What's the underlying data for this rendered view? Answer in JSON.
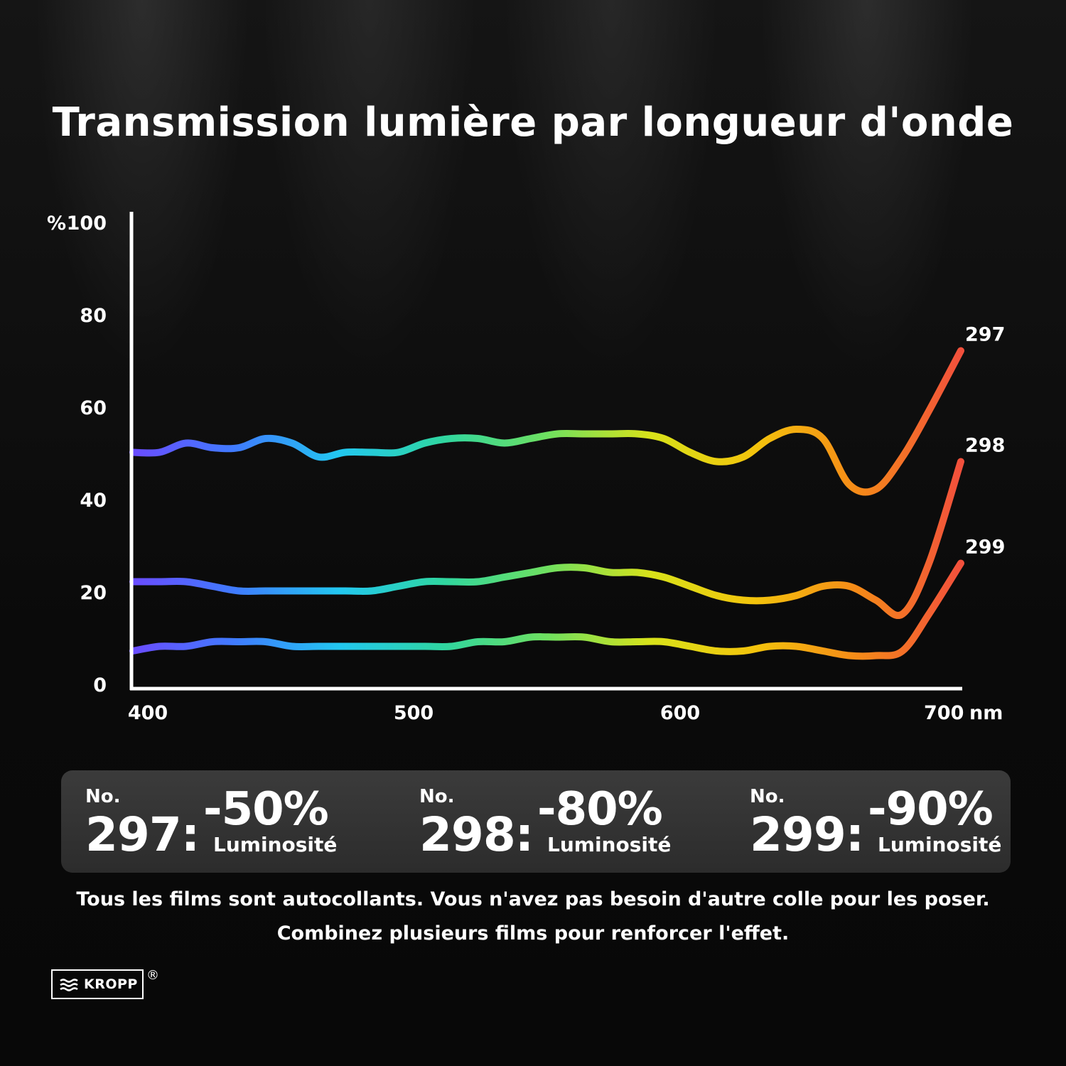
{
  "title": "Transmission lumière par longueur d'onde",
  "chart_data": {
    "type": "line",
    "title": "Transmission lumière par longueur d'onde",
    "y_axis": {
      "unit_label": "%",
      "ticks": [
        "100",
        "80",
        "60",
        "40",
        "20",
        "0"
      ],
      "range": [
        0,
        100
      ]
    },
    "x_axis": {
      "unit_label": "nm",
      "ticks": [
        "400",
        "500",
        "600",
        "700"
      ],
      "range": [
        400,
        712
      ]
    },
    "grid": false,
    "colors": {
      "gradient": [
        "#6a4cff",
        "#3f7cff",
        "#22c8f0",
        "#2fd6a0",
        "#6ee060",
        "#d8e21a",
        "#f3c40c",
        "#f58a18",
        "#f2503c"
      ],
      "axis": "#ffffff"
    },
    "series": [
      {
        "name": "297",
        "x": [
          400,
          410,
          420,
          430,
          440,
          450,
          460,
          470,
          480,
          490,
          500,
          510,
          520,
          530,
          540,
          550,
          560,
          570,
          580,
          590,
          600,
          610,
          620,
          630,
          640,
          650,
          660,
          670,
          680,
          690,
          700,
          712
        ],
        "y": [
          51,
          51,
          53,
          52,
          52,
          54,
          53,
          50,
          51,
          51,
          51,
          53,
          54,
          54,
          53,
          54,
          55,
          55,
          55,
          55,
          54,
          51,
          49,
          50,
          54,
          56,
          54,
          44,
          43,
          50,
          60,
          73
        ]
      },
      {
        "name": "298",
        "x": [
          400,
          410,
          420,
          430,
          440,
          450,
          460,
          470,
          480,
          490,
          500,
          510,
          520,
          530,
          540,
          550,
          560,
          570,
          580,
          590,
          600,
          610,
          620,
          630,
          640,
          650,
          660,
          670,
          680,
          690,
          700,
          712
        ],
        "y": [
          23,
          23,
          23,
          22,
          21,
          21,
          21,
          21,
          21,
          21,
          22,
          23,
          23,
          23,
          24,
          25,
          26,
          26,
          25,
          25,
          24,
          22,
          20,
          19,
          19,
          20,
          22,
          22,
          19,
          16,
          27,
          49
        ]
      },
      {
        "name": "299",
        "x": [
          400,
          410,
          420,
          430,
          440,
          450,
          460,
          470,
          480,
          490,
          500,
          510,
          520,
          530,
          540,
          550,
          560,
          570,
          580,
          590,
          600,
          610,
          620,
          630,
          640,
          650,
          660,
          670,
          680,
          690,
          700,
          712
        ],
        "y": [
          8,
          9,
          9,
          10,
          10,
          10,
          9,
          9,
          9,
          9,
          9,
          9,
          9,
          10,
          10,
          11,
          11,
          11,
          10,
          10,
          10,
          9,
          8,
          8,
          9,
          9,
          8,
          7,
          7,
          8,
          16,
          27
        ]
      }
    ]
  },
  "products": [
    {
      "no_label": "No.",
      "number": "297:",
      "value": "-50%",
      "caption": "Luminosité"
    },
    {
      "no_label": "No.",
      "number": "298:",
      "value": "-80%",
      "caption": "Luminosité"
    },
    {
      "no_label": "No.",
      "number": "299:",
      "value": "-90%",
      "caption": "Luminosité"
    }
  ],
  "notes": [
    "Tous les films sont autocollants. Vous n'avez pas besoin d'autre colle pour les poser.",
    "Combinez plusieurs films pour renforcer l'effet."
  ],
  "logo": {
    "text": "KROPP",
    "registered": "®"
  }
}
